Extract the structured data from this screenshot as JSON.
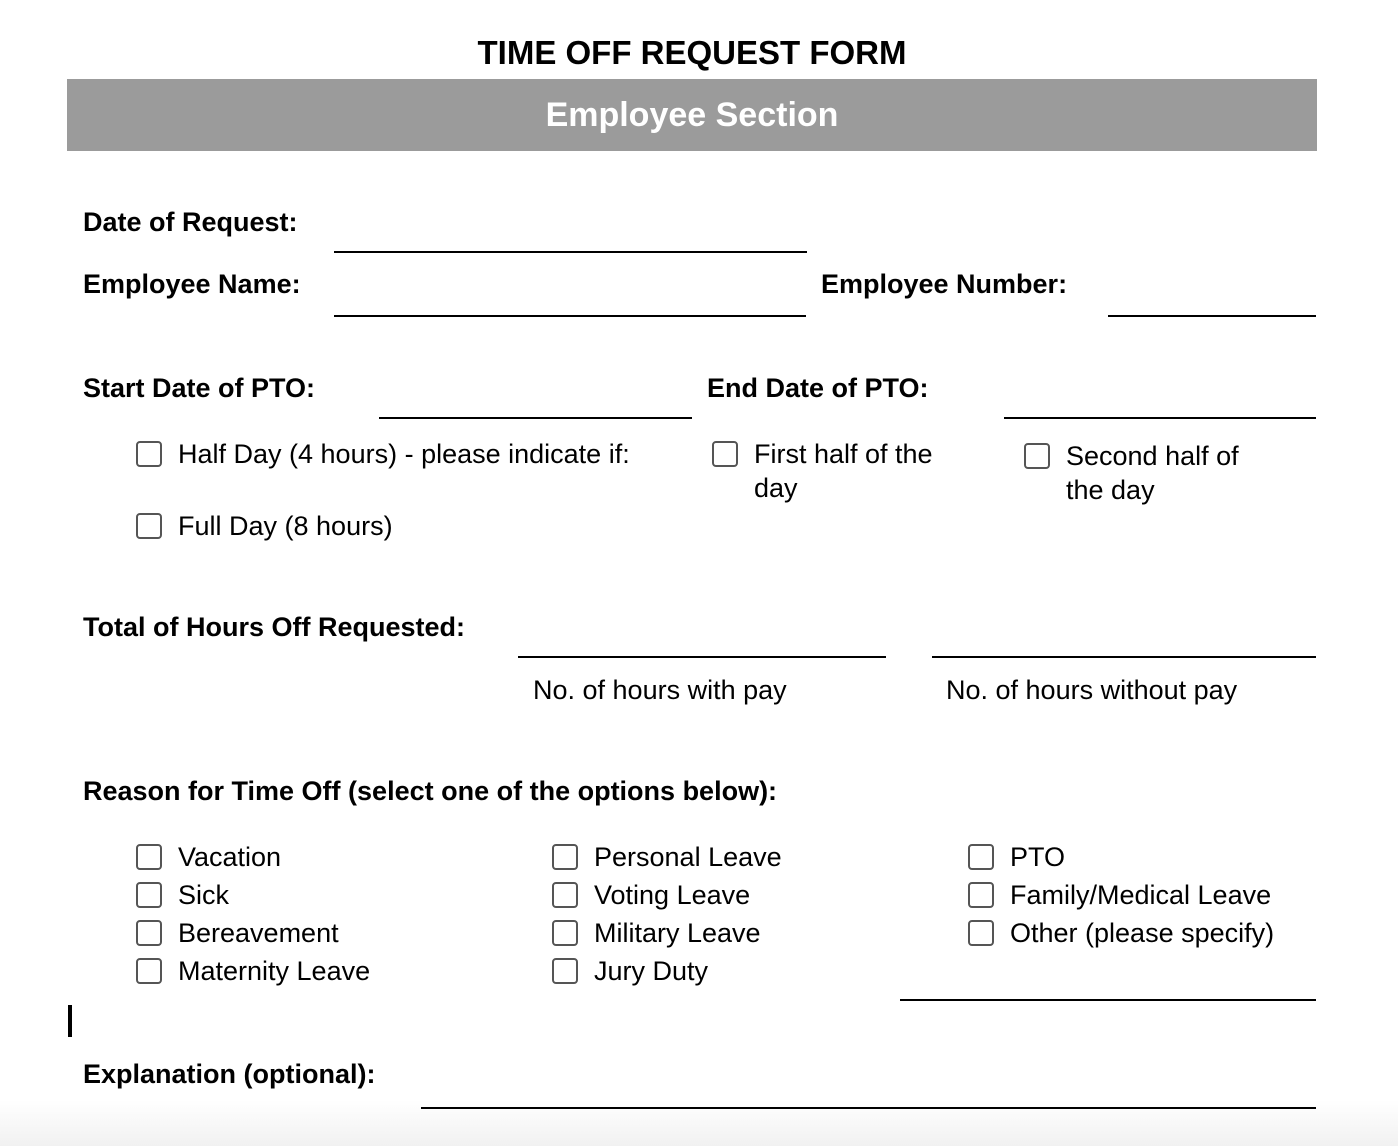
{
  "title": "TIME OFF REQUEST FORM",
  "section": "Employee Section",
  "fields": {
    "date_of_request": "Date of Request:",
    "employee_name": "Employee Name:",
    "employee_number": "Employee Number:",
    "start_date": "Start Date of PTO:",
    "end_date": "End Date of PTO:",
    "total_hours": "Total of Hours Off Requested:",
    "hours_with_pay": "No. of hours with pay",
    "hours_without_pay": "No. of hours without pay",
    "reason": "Reason for Time Off (select one of the options below):",
    "explanation": "Explanation (optional):"
  },
  "duration": {
    "half_day": "Half Day (4 hours) - please indicate if:",
    "first_half_1": "First half of the",
    "first_half_2": "day",
    "second_half_1": "Second half of",
    "second_half_2": "the day",
    "full_day": "Full Day (8 hours)"
  },
  "reasons": [
    "Vacation",
    "Sick",
    "Bereavement",
    "Maternity Leave",
    "Personal Leave",
    "Voting Leave",
    "Military Leave",
    "Jury Duty",
    "PTO",
    "Family/Medical Leave",
    "Other (please specify)"
  ]
}
